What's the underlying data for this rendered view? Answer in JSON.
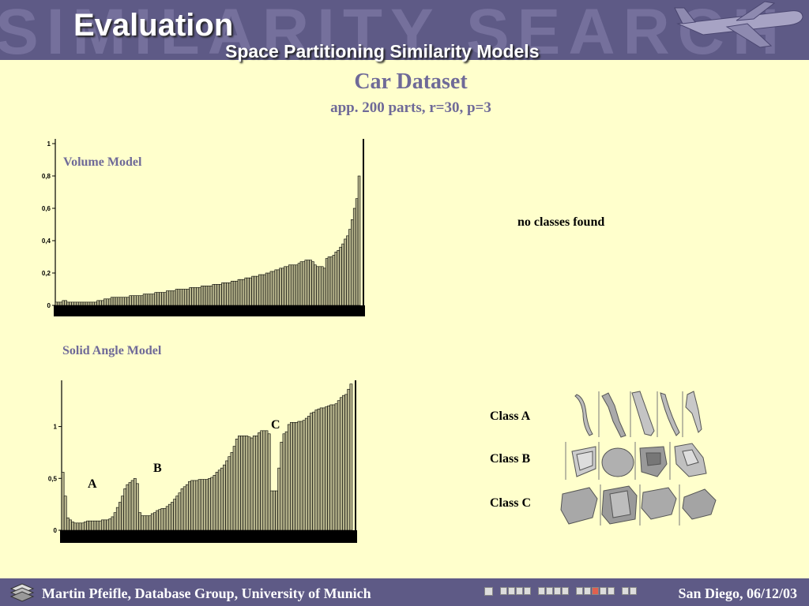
{
  "header": {
    "watermark": "SIMILARITY SEARCH ON CAD DATA",
    "title": "Evaluation",
    "subtitle": "Space Partitioning Similarity Models"
  },
  "dataset": {
    "title": "Car Dataset",
    "params": "app. 200 parts, r=30, p=3"
  },
  "note": "no classes found",
  "markers": {
    "a": "A",
    "b": "B",
    "c": "C"
  },
  "classes": [
    {
      "label": "Class A",
      "icon": "elongated-part-thumbnails"
    },
    {
      "label": "Class B",
      "icon": "panel-part-thumbnails"
    },
    {
      "label": "Class C",
      "icon": "bulky-part-thumbnails"
    }
  ],
  "footer": {
    "author": "Martin Pfeifle, Database Group, University of Munich",
    "date": "San Diego, 06/12/03"
  },
  "colors": {
    "accent": "#6f6a98",
    "bar_fill": "#b6b48c",
    "header": "#5e5a86",
    "background": "#FFFFCC"
  },
  "chart_data": [
    {
      "type": "bar",
      "title": "Volume Model",
      "ylim": [
        0,
        1
      ],
      "ytick_labels": [
        "0",
        "0,2",
        "0,4",
        "0,6",
        "0,8",
        "1"
      ],
      "values": [
        0.02,
        0.02,
        0.02,
        0.03,
        0.03,
        0.02,
        0.02,
        0.02,
        0.02,
        0.02,
        0.02,
        0.02,
        0.02,
        0.02,
        0.02,
        0.02,
        0.02,
        0.02,
        0.03,
        0.03,
        0.03,
        0.04,
        0.04,
        0.04,
        0.05,
        0.05,
        0.05,
        0.05,
        0.05,
        0.05,
        0.05,
        0.05,
        0.06,
        0.06,
        0.06,
        0.06,
        0.06,
        0.06,
        0.07,
        0.07,
        0.07,
        0.07,
        0.07,
        0.08,
        0.08,
        0.08,
        0.08,
        0.08,
        0.09,
        0.09,
        0.09,
        0.09,
        0.1,
        0.1,
        0.1,
        0.1,
        0.1,
        0.1,
        0.11,
        0.11,
        0.11,
        0.11,
        0.11,
        0.12,
        0.12,
        0.12,
        0.12,
        0.12,
        0.13,
        0.13,
        0.13,
        0.13,
        0.14,
        0.14,
        0.14,
        0.14,
        0.15,
        0.15,
        0.15,
        0.16,
        0.16,
        0.16,
        0.17,
        0.17,
        0.17,
        0.18,
        0.18,
        0.18,
        0.19,
        0.19,
        0.19,
        0.2,
        0.2,
        0.21,
        0.21,
        0.22,
        0.22,
        0.23,
        0.23,
        0.24,
        0.24,
        0.25,
        0.25,
        0.25,
        0.25,
        0.26,
        0.27,
        0.27,
        0.28,
        0.28,
        0.28,
        0.27,
        0.25,
        0.24,
        0.24,
        0.24,
        0.23,
        0.29,
        0.3,
        0.3,
        0.31,
        0.33,
        0.34,
        0.36,
        0.38,
        0.41,
        0.43,
        0.47,
        0.53,
        0.6,
        0.66,
        0.8
      ]
    },
    {
      "type": "bar",
      "title": "Solid Angle Model",
      "ylim": [
        0,
        1.4
      ],
      "ytick_labels": [
        "0",
        "0,5",
        "1"
      ],
      "values": [
        0.56,
        0.33,
        0.12,
        0.1,
        0.08,
        0.07,
        0.07,
        0.07,
        0.07,
        0.08,
        0.09,
        0.09,
        0.09,
        0.09,
        0.09,
        0.09,
        0.1,
        0.1,
        0.1,
        0.11,
        0.13,
        0.17,
        0.22,
        0.27,
        0.33,
        0.4,
        0.44,
        0.46,
        0.48,
        0.5,
        0.45,
        0.17,
        0.14,
        0.14,
        0.14,
        0.14,
        0.16,
        0.17,
        0.19,
        0.2,
        0.21,
        0.21,
        0.23,
        0.25,
        0.27,
        0.3,
        0.33,
        0.36,
        0.4,
        0.42,
        0.44,
        0.47,
        0.48,
        0.48,
        0.48,
        0.49,
        0.49,
        0.49,
        0.49,
        0.5,
        0.51,
        0.53,
        0.56,
        0.58,
        0.6,
        0.63,
        0.67,
        0.71,
        0.75,
        0.81,
        0.88,
        0.91,
        0.91,
        0.91,
        0.91,
        0.9,
        0.89,
        0.91,
        0.91,
        0.94,
        0.96,
        0.96,
        0.96,
        0.93,
        0.38,
        0.38,
        0.38,
        0.6,
        0.85,
        0.93,
        0.95,
        1.02,
        1.04,
        1.04,
        1.04,
        1.05,
        1.05,
        1.06,
        1.08,
        1.1,
        1.13,
        1.14,
        1.16,
        1.17,
        1.18,
        1.18,
        1.19,
        1.2,
        1.21,
        1.21,
        1.22,
        1.25,
        1.28,
        1.3,
        1.31,
        1.36,
        1.41
      ]
    }
  ]
}
